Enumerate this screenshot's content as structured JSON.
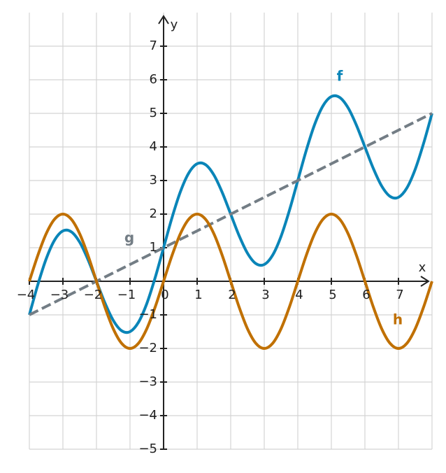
{
  "chart_data": {
    "type": "line",
    "x_label": "x",
    "y_label": "y",
    "x": [
      -4,
      -3.75,
      -3.5,
      -3.25,
      -3,
      -2.75,
      -2.5,
      -2.25,
      -2,
      -1.75,
      -1.5,
      -1.25,
      -1,
      -0.75,
      -0.5,
      -0.25,
      0,
      0.25,
      0.5,
      0.75,
      1,
      1.25,
      1.5,
      1.75,
      2,
      2.25,
      2.5,
      2.75,
      3,
      3.25,
      3.5,
      3.75,
      4,
      4.25,
      4.5,
      4.75,
      5,
      5.25,
      5.5,
      5.75,
      6,
      6.25,
      6.5,
      6.75,
      7,
      7.25,
      7.5,
      7.75,
      8
    ],
    "series": [
      {
        "name": "f",
        "color": "#0a85b8",
        "dashed": false,
        "values": [
          -1,
          -0.11,
          0.664,
          1.223,
          1.5,
          1.473,
          1.164,
          0.64,
          0,
          -0.64,
          -1.164,
          -1.473,
          -1.5,
          -1.223,
          -0.664,
          0.11,
          1,
          1.89,
          2.664,
          3.223,
          3.5,
          3.473,
          3.164,
          2.64,
          2,
          1.36,
          0.836,
          0.527,
          0.5,
          0.777,
          1.336,
          2.11,
          3,
          3.89,
          4.664,
          5.223,
          5.5,
          5.473,
          5.164,
          4.64,
          4,
          3.36,
          2.836,
          2.527,
          2.5,
          2.777,
          3.336,
          4.11,
          5
        ]
      },
      {
        "name": "g",
        "color": "#737d85",
        "dashed": true,
        "values": [
          -1,
          -0.875,
          -0.75,
          -0.625,
          -0.5,
          -0.375,
          -0.25,
          -0.125,
          0,
          0.125,
          0.25,
          0.375,
          0.5,
          0.625,
          0.75,
          0.875,
          1,
          1.125,
          1.25,
          1.375,
          1.5,
          1.625,
          1.75,
          1.875,
          2,
          2.125,
          2.25,
          2.375,
          2.5,
          2.625,
          2.75,
          2.875,
          3,
          3.125,
          3.25,
          3.375,
          3.5,
          3.625,
          3.75,
          3.875,
          4,
          4.125,
          4.25,
          4.375,
          4.5,
          4.625,
          4.75,
          4.875,
          5
        ]
      },
      {
        "name": "h",
        "color": "#c07000",
        "dashed": false,
        "values": [
          0,
          0.765,
          1.414,
          1.848,
          2,
          1.848,
          1.414,
          0.765,
          0,
          -0.765,
          -1.414,
          -1.848,
          -2,
          -1.848,
          -1.414,
          -0.765,
          0,
          0.765,
          1.414,
          1.848,
          2,
          1.848,
          1.414,
          0.765,
          0,
          -0.765,
          -1.414,
          -1.848,
          -2,
          -1.848,
          -1.414,
          -0.765,
          0,
          0.765,
          1.414,
          1.848,
          2,
          1.848,
          1.414,
          0.765,
          0,
          -0.765,
          -1.414,
          -1.848,
          -2,
          -1.848,
          -1.414,
          -0.765,
          0
        ]
      }
    ],
    "xlim": [
      -4,
      8
    ],
    "ylim": [
      -5,
      8
    ],
    "xticks": [
      {
        "value": -4,
        "label": "−4"
      },
      {
        "value": -3,
        "label": "−3"
      },
      {
        "value": -2,
        "label": "−2"
      },
      {
        "value": -1,
        "label": "−1"
      },
      0,
      1,
      2,
      3,
      4,
      5,
      6,
      7
    ],
    "yticks": [
      {
        "value": -5,
        "label": "−5"
      },
      {
        "value": -4,
        "label": "−4"
      },
      {
        "value": -3,
        "label": "−3"
      },
      {
        "value": -2,
        "label": "−2"
      },
      {
        "value": -1,
        "label": "−1"
      },
      1,
      2,
      3,
      4,
      5,
      6,
      7
    ],
    "grid": true
  }
}
